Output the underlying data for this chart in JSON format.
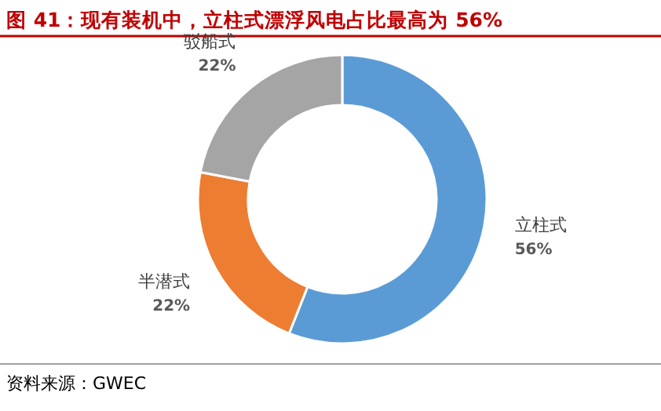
{
  "chart_data": {
    "type": "donut",
    "title": "图 41：现有装机中，立柱式漂浮风电占比最高为 56%",
    "categories": [
      "立柱式",
      "半潜式",
      "驳船式"
    ],
    "values": [
      56,
      22,
      22
    ],
    "colors": [
      "#5b9bd5",
      "#ed7d31",
      "#a5a5a5"
    ],
    "value_labels": [
      "56%",
      "22%",
      "22%"
    ],
    "annotations": [
      "资料来源：GWEC"
    ]
  }
}
